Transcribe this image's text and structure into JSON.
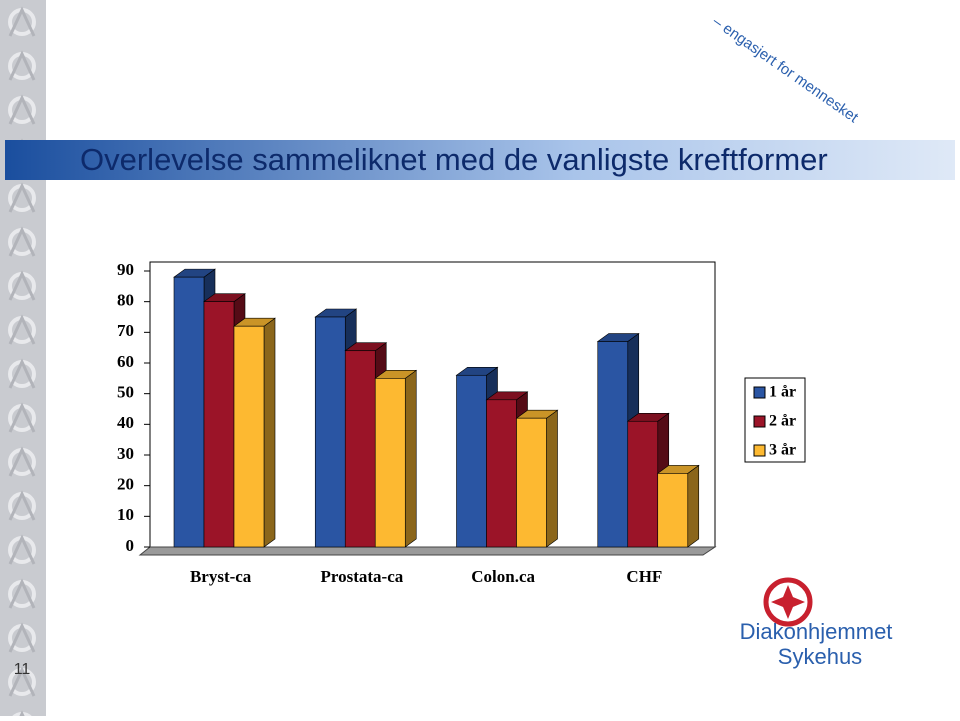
{
  "slide": {
    "tagline": "– engasjert for mennesket",
    "logo_line1": "Diakonhjemmet",
    "logo_line2": "Sykehus",
    "page_number": "11"
  },
  "chart_data": {
    "type": "bar3d",
    "title": "Overlevelse sammeliknet med de vanligste kreftformer",
    "categories": [
      "Bryst-ca",
      "Prostata-ca",
      "Colon.ca",
      "CHF"
    ],
    "series": [
      {
        "name": "1 år",
        "color": "#2a55a3",
        "values": [
          88,
          75,
          56,
          67
        ]
      },
      {
        "name": "2 år",
        "color": "#9b1428",
        "values": [
          80,
          64,
          48,
          41
        ]
      },
      {
        "name": "3 år",
        "color": "#fdb931",
        "values": [
          72,
          55,
          42,
          24
        ]
      }
    ],
    "ylim": [
      0,
      90
    ],
    "yticks": [
      0,
      10,
      20,
      30,
      40,
      50,
      60,
      70,
      80,
      90
    ],
    "grid": false,
    "legend": "right"
  }
}
